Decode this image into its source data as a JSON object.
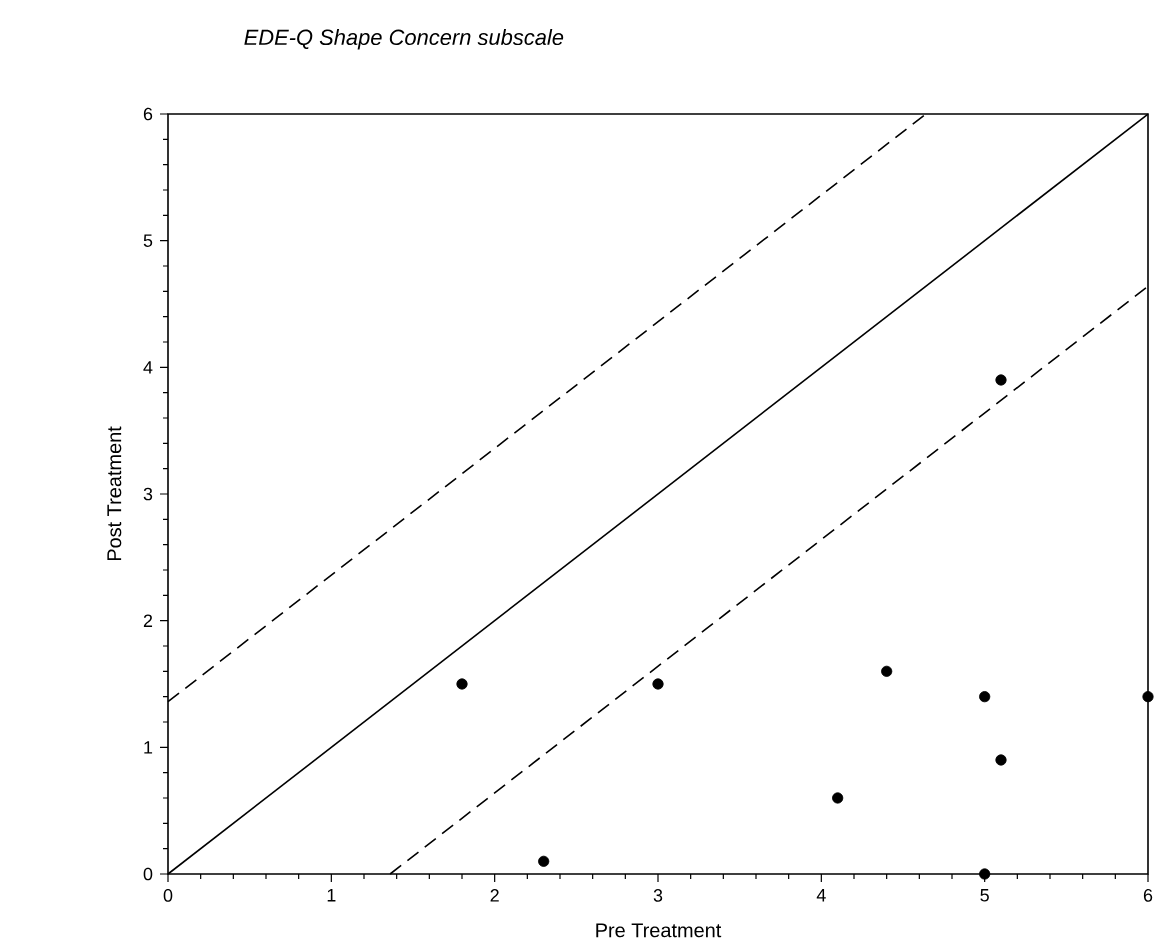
{
  "chart_data": {
    "type": "scatter",
    "title": "EDE-Q Shape Concern subscale",
    "xlabel": "Pre Treatment",
    "ylabel": "Post Treatment",
    "xlim": [
      0,
      6
    ],
    "ylim": [
      0,
      6
    ],
    "xticks": [
      0,
      1,
      2,
      3,
      4,
      5,
      6
    ],
    "yticks": [
      0,
      1,
      2,
      3,
      4,
      5,
      6
    ],
    "marker": "circle",
    "series": [
      {
        "color": "#000000",
        "x": [
          1.8,
          2.3,
          3.0,
          4.1,
          4.4,
          5.0,
          5.1,
          5.0,
          5.1,
          6.0
        ],
        "values": [
          1.5,
          0.1,
          1.5,
          0.6,
          1.6,
          1.4,
          0.9,
          0.0,
          3.9,
          1.4
        ]
      },
      {
        "type": "line",
        "marker": "none",
        "line_style": "solid",
        "color": "#000000",
        "x": [
          0,
          6
        ],
        "values": [
          0,
          6
        ]
      },
      {
        "type": "line",
        "marker": "none",
        "line_style": "dashed",
        "color": "#000000",
        "x": [
          0,
          4.64
        ],
        "values": [
          1.36,
          6
        ]
      },
      {
        "type": "line",
        "marker": "none",
        "line_style": "dashed",
        "color": "#000000",
        "x": [
          1.36,
          6
        ],
        "values": [
          0,
          4.64
        ]
      }
    ]
  }
}
